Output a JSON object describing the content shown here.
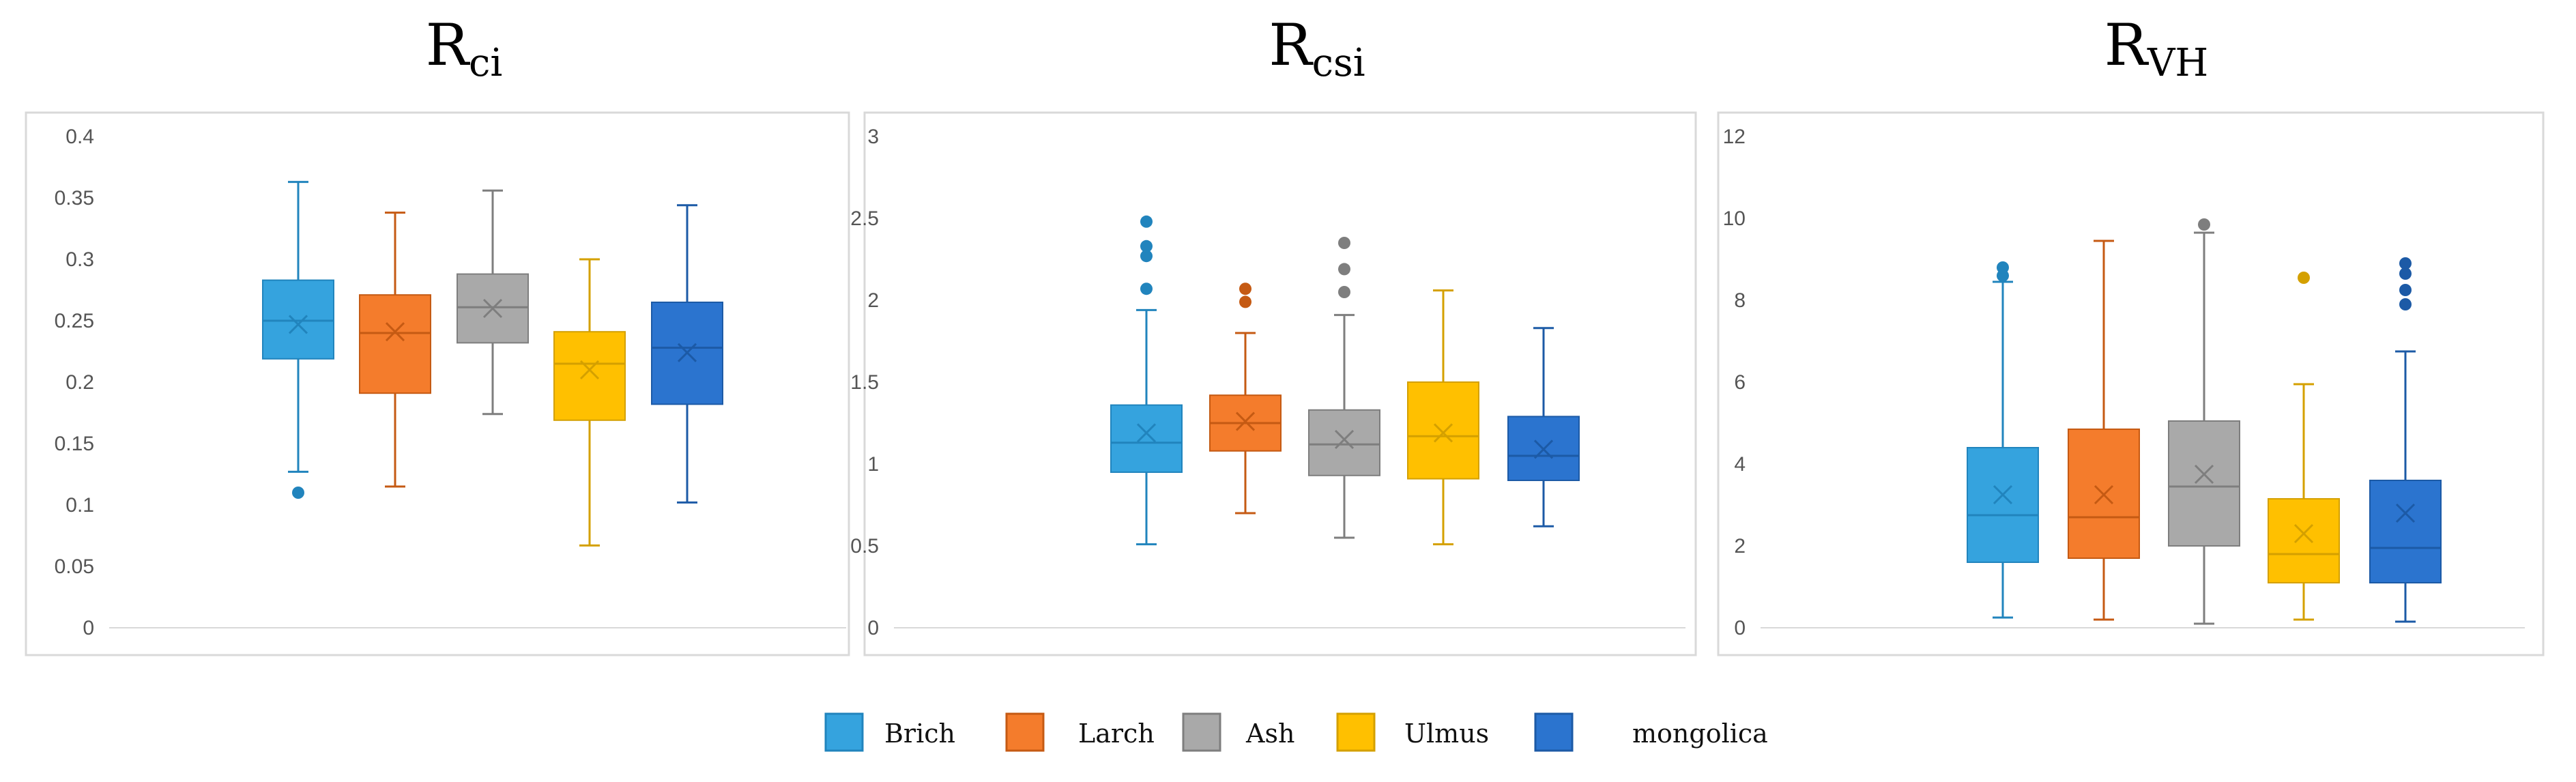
{
  "legend": [
    {
      "name": "Brich",
      "color": "#35a3de",
      "dark": "#2184bd"
    },
    {
      "name": "Larch",
      "color": "#f47c2c",
      "dark": "#c55a13"
    },
    {
      "name": "Ash",
      "color": "#a9a9a9",
      "dark": "#7e7e7e"
    },
    {
      "name": "Ulmus",
      "color": "#ffc000",
      "dark": "#d4a000"
    },
    {
      "name": "mongolica",
      "color": "#2b74cf",
      "dark": "#1c5aa6"
    }
  ],
  "chart_data": [
    {
      "type": "box",
      "title": "R",
      "title_sub": "ci",
      "ylim": [
        0,
        0.4
      ],
      "yticks": [
        0,
        0.05,
        0.1,
        0.15,
        0.2,
        0.25,
        0.3,
        0.35,
        0.4
      ],
      "ytick_labels": [
        "0",
        "0.05",
        "0.1",
        "0.15",
        "0.2",
        "0.25",
        "0.3",
        "0.35",
        "0.4"
      ],
      "series": [
        {
          "name": "Brich",
          "min": 0.127,
          "q1": 0.219,
          "median": 0.25,
          "q3": 0.283,
          "max": 0.363,
          "mean": 0.247,
          "outliers": [
            0.11
          ]
        },
        {
          "name": "Larch",
          "min": 0.115,
          "q1": 0.191,
          "median": 0.24,
          "q3": 0.271,
          "max": 0.338,
          "mean": 0.241,
          "outliers": []
        },
        {
          "name": "Ash",
          "min": 0.174,
          "q1": 0.232,
          "median": 0.261,
          "q3": 0.288,
          "max": 0.356,
          "mean": 0.26,
          "outliers": []
        },
        {
          "name": "Ulmus",
          "min": 0.067,
          "q1": 0.169,
          "median": 0.215,
          "q3": 0.241,
          "max": 0.3,
          "mean": 0.21,
          "outliers": []
        },
        {
          "name": "mongolica",
          "min": 0.102,
          "q1": 0.182,
          "median": 0.228,
          "q3": 0.265,
          "max": 0.344,
          "mean": 0.224,
          "outliers": []
        }
      ]
    },
    {
      "type": "box",
      "title": "R",
      "title_sub": "csi",
      "ylim": [
        0,
        3
      ],
      "yticks": [
        0,
        0.5,
        1,
        1.5,
        2,
        2.5,
        3
      ],
      "ytick_labels": [
        "0",
        "0.5",
        "1",
        "1.5",
        "2",
        "2.5",
        "3"
      ],
      "series": [
        {
          "name": "Brich",
          "min": 0.51,
          "q1": 0.95,
          "median": 1.13,
          "q3": 1.36,
          "max": 1.94,
          "mean": 1.19,
          "outliers": [
            2.07,
            2.27,
            2.33,
            2.48
          ]
        },
        {
          "name": "Larch",
          "min": 0.7,
          "q1": 1.08,
          "median": 1.25,
          "q3": 1.42,
          "max": 1.8,
          "mean": 1.26,
          "outliers": [
            1.99,
            2.07
          ]
        },
        {
          "name": "Ash",
          "min": 0.55,
          "q1": 0.93,
          "median": 1.12,
          "q3": 1.33,
          "max": 1.91,
          "mean": 1.15,
          "outliers": [
            2.05,
            2.19,
            2.35
          ]
        },
        {
          "name": "Ulmus",
          "min": 0.51,
          "q1": 0.91,
          "median": 1.17,
          "q3": 1.5,
          "max": 2.06,
          "mean": 1.19,
          "outliers": []
        },
        {
          "name": "mongolica",
          "min": 0.62,
          "q1": 0.9,
          "median": 1.05,
          "q3": 1.29,
          "max": 1.83,
          "mean": 1.09,
          "outliers": []
        }
      ]
    },
    {
      "type": "box",
      "title": "R",
      "title_sub": "VH",
      "ylim": [
        0,
        12
      ],
      "yticks": [
        0,
        2,
        4,
        6,
        8,
        10,
        12
      ],
      "ytick_labels": [
        "0",
        "2",
        "4",
        "6",
        "8",
        "10",
        "12"
      ],
      "series": [
        {
          "name": "Brich",
          "min": 0.25,
          "q1": 1.6,
          "median": 2.75,
          "q3": 4.4,
          "max": 8.45,
          "mean": 3.25,
          "outliers": [
            8.6,
            8.8
          ]
        },
        {
          "name": "Larch",
          "min": 0.2,
          "q1": 1.7,
          "median": 2.7,
          "q3": 4.85,
          "max": 9.45,
          "mean": 3.25,
          "outliers": []
        },
        {
          "name": "Ash",
          "min": 0.1,
          "q1": 2.0,
          "median": 3.45,
          "q3": 5.05,
          "max": 9.65,
          "mean": 3.75,
          "outliers": [
            9.85
          ]
        },
        {
          "name": "Ulmus",
          "min": 0.2,
          "q1": 1.1,
          "median": 1.8,
          "q3": 3.15,
          "max": 5.95,
          "mean": 2.3,
          "outliers": [
            8.55
          ]
        },
        {
          "name": "mongolica",
          "min": 0.15,
          "q1": 1.1,
          "median": 1.95,
          "q3": 3.6,
          "max": 6.75,
          "mean": 2.8,
          "outliers": [
            7.9,
            8.25,
            8.65,
            8.9
          ]
        }
      ]
    }
  ]
}
